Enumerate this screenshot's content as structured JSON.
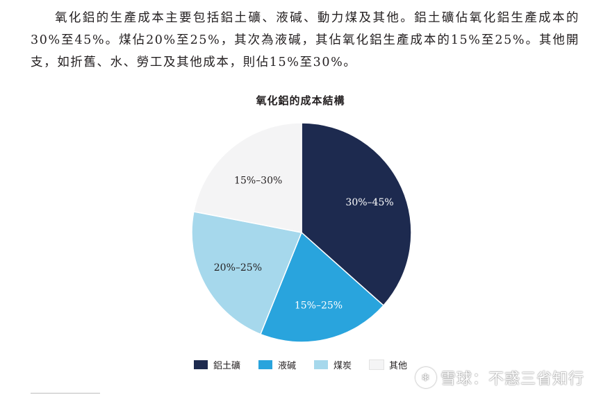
{
  "paragraph": "氧化鋁的生產成本主要包括鋁土礦、液碱、動力煤及其他。鋁土礦佔氧化鋁生產成本的30%至45%。煤佔20%至25%，其次為液碱，其佔氧化鋁生產成本的15%至25%。其他開支，如折舊、水、勞工及其他成本，則佔15%至30%。",
  "chart_data": {
    "type": "pie",
    "title": "氧化鋁的成本結構",
    "categories": [
      "鋁土礦",
      "液碱",
      "煤炭",
      "其他"
    ],
    "labels": [
      "30%–45%",
      "15%–25%",
      "20%–25%",
      "15%–30%"
    ],
    "values": [
      37.5,
      20,
      22.5,
      22.5
    ],
    "colors": [
      "#1d2a4f",
      "#29a4dd",
      "#a6d8ec",
      "#f4f4f5"
    ],
    "legend_position": "bottom",
    "start_angle_deg": 0,
    "direction": "clockwise"
  },
  "watermark": {
    "logo_icon": "snowball-icon",
    "text": "雪球：不惑三省知行"
  }
}
